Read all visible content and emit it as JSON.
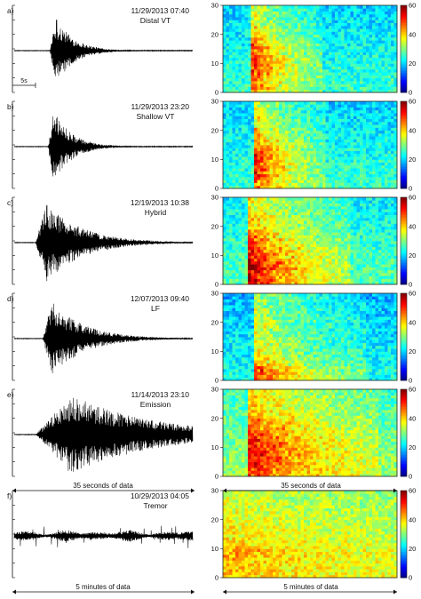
{
  "figure": {
    "footers": {
      "waveform_events": "35 seconds of data",
      "spectrogram_events": "35 seconds of data",
      "waveform_tremor": "5 minutes of data",
      "spectrogram_tremor": "5 minutes of data"
    },
    "scale_bar_label": "5s"
  },
  "chart_data": {
    "type": "heatmap",
    "colormap": "jet",
    "frequency_axis": {
      "ylim": [
        0,
        30
      ],
      "ticks": [
        "0",
        "10",
        "20",
        "30"
      ]
    },
    "colorbar": {
      "range": [
        0,
        60
      ],
      "ticks": [
        "0",
        "20",
        "40",
        "60"
      ]
    },
    "grid": false,
    "panels": [
      {
        "letter": "a)",
        "datetime": "11/29/2013 07:40",
        "event_type": "Distal VT",
        "duration": "35 seconds of data",
        "waveform": {
          "onset": 0.2,
          "peak_amp": 0.85,
          "decay": 0.1,
          "rise": 0.03
        },
        "spectrogram": {
          "onset": 0.16,
          "peak_level": 55,
          "center_freq": 11,
          "spread_freq": 9,
          "duration": 0.42,
          "background": 26
        }
      },
      {
        "letter": "b)",
        "datetime": "11/29/2013 23:20",
        "event_type": "Shallow VT",
        "duration": "35 seconds of data",
        "waveform": {
          "onset": 0.19,
          "peak_amp": 0.9,
          "decay": 0.1,
          "rise": 0.03
        },
        "spectrogram": {
          "onset": 0.17,
          "peak_level": 56,
          "center_freq": 10,
          "spread_freq": 9,
          "duration": 0.42,
          "background": 26
        }
      },
      {
        "letter": "c)",
        "datetime": "12/19/2013 10:38",
        "event_type": "Hybrid",
        "duration": "35 seconds of data",
        "waveform": {
          "onset": 0.12,
          "peak_amp": 0.95,
          "decay": 0.2,
          "rise": 0.06
        },
        "spectrogram": {
          "onset": 0.14,
          "peak_level": 60,
          "center_freq": 6,
          "spread_freq": 10,
          "duration": 0.6,
          "background": 28
        }
      },
      {
        "letter": "d)",
        "datetime": "12/07/2013 09:40",
        "event_type": "LF",
        "duration": "35 seconds of data",
        "waveform": {
          "onset": 0.16,
          "peak_amp": 0.9,
          "decay": 0.18,
          "rise": 0.05
        },
        "spectrogram": {
          "onset": 0.17,
          "peak_level": 54,
          "center_freq": 2,
          "spread_freq": 4,
          "duration": 0.65,
          "background": 24
        }
      },
      {
        "letter": "e)",
        "datetime": "11/14/2013 23:10",
        "event_type": "Emission",
        "duration": "35 seconds of data",
        "waveform": {
          "onset": 0.12,
          "peak_amp": 0.95,
          "decay": 0.45,
          "rise": 0.2
        },
        "spectrogram": {
          "onset": 0.15,
          "peak_level": 56,
          "center_freq": 10,
          "spread_freq": 10,
          "duration": 0.75,
          "background": 32
        }
      },
      {
        "letter": "f)",
        "datetime": "10/29/2013 04:05",
        "event_type": "Tremor",
        "duration": "5 minutes of data",
        "waveform": {
          "onset": 0.0,
          "peak_amp": 0.55,
          "decay": 0,
          "rise": 0
        },
        "spectrogram": {
          "onset": 0.0,
          "peak_level": 46,
          "center_freq": 9,
          "spread_freq": 3,
          "duration": 1.0,
          "background": 36
        }
      }
    ]
  }
}
